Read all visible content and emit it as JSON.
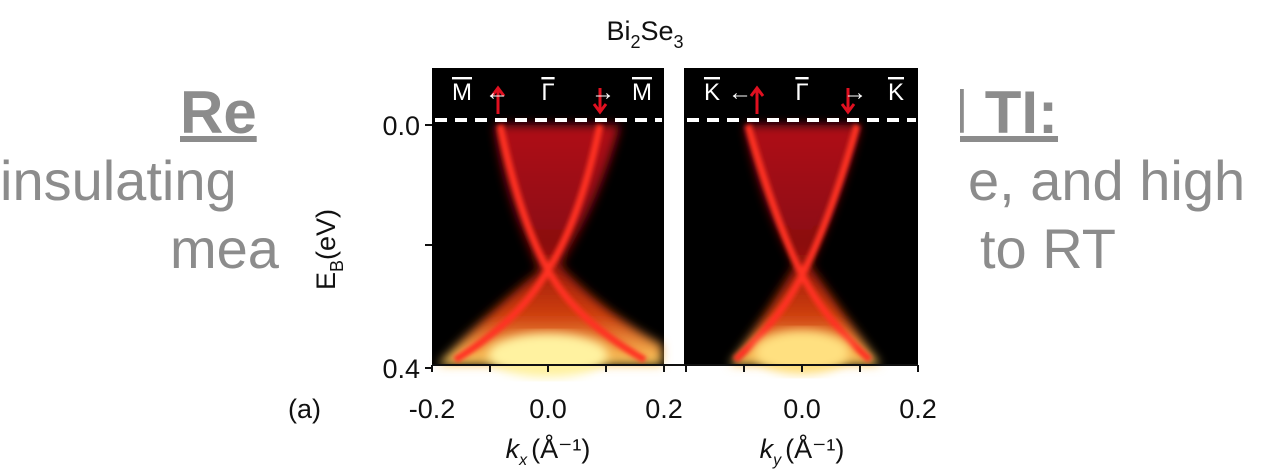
{
  "slide": {
    "title_left": "Re",
    "title_right": "al TI:",
    "line1_left": "insulating",
    "line1_right": "e, and high",
    "line2_left": "mea",
    "line2_right": "to RT"
  },
  "figure": {
    "title": {
      "base": "Bi",
      "sub1": "2",
      "mid": "Se",
      "sub2": "3"
    },
    "y_label": {
      "base": "E",
      "sub": "B",
      "unit": "(eV)"
    },
    "y_ticks": [
      "0.0",
      "0.4"
    ],
    "panel_label": "(a)",
    "panels": [
      {
        "top_labels": [
          "M",
          "←",
          "Γ",
          "→",
          "M"
        ],
        "x_ticks": [
          "-0.2",
          "0.0",
          "0.2"
        ],
        "x_label": {
          "base": "k",
          "sub": "x",
          "unit": "(Å⁻¹)"
        }
      },
      {
        "top_labels": [
          "K",
          "←",
          "Γ",
          "→",
          "K"
        ],
        "x_ticks": [
          "0.0",
          "0.2"
        ],
        "x_label": {
          "base": "k",
          "sub": "y",
          "unit": "(Å⁻¹)"
        }
      }
    ]
  }
}
